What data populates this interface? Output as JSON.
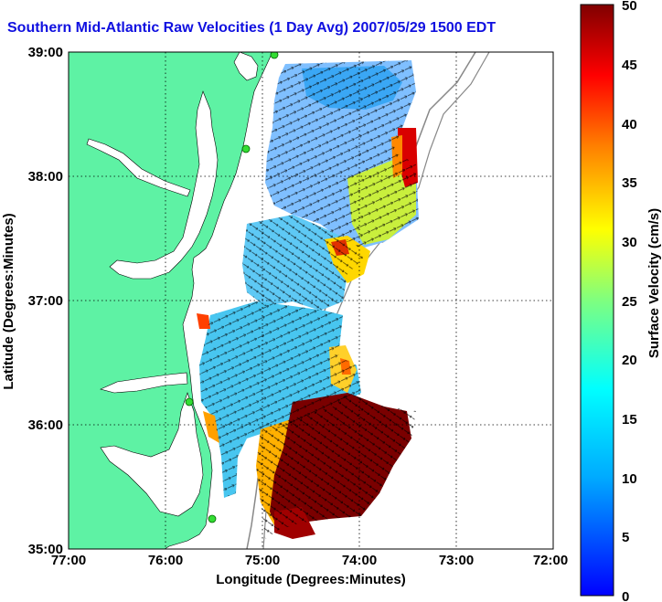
{
  "title": "Southern Mid-Atlantic Raw Velocities (1 Day Avg) 2007/05/29 1500 EDT",
  "map": {
    "xlabel": "Longitude (Degrees:Minutes)",
    "ylabel": "Latitude (Degrees:Minutes)",
    "x_ticks": [
      "77:00",
      "76:00",
      "75:00",
      "74:00",
      "73:00",
      "72:00"
    ],
    "y_ticks": [
      "39:00",
      "38:00",
      "37:00",
      "36:00",
      "35:00"
    ],
    "lon_range": [
      -77,
      -72
    ],
    "lat_range": [
      35,
      39
    ],
    "grid": true,
    "land_color": "#5ef2a4",
    "water_color": "#ffffff"
  },
  "colorbar": {
    "label": "Surface Velocity (cm/s)",
    "ticks": [
      "50",
      "45",
      "40",
      "35",
      "30",
      "25",
      "20",
      "15",
      "10",
      "5",
      "0"
    ],
    "range": [
      0,
      50
    ],
    "colormap": "jet"
  }
}
